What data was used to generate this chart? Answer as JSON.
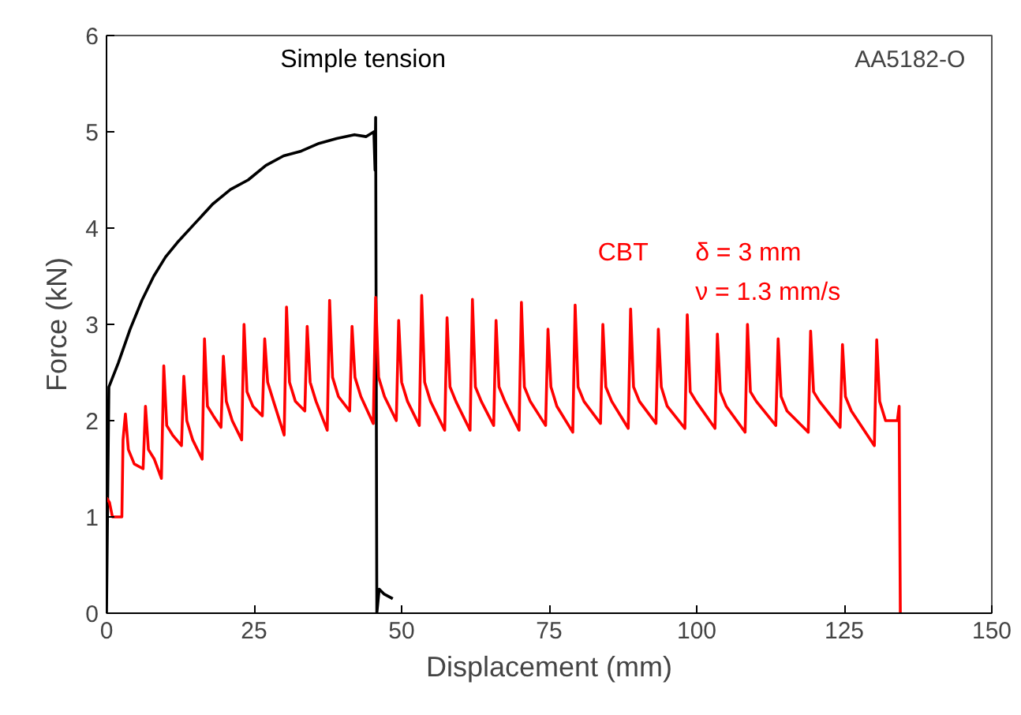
{
  "chart_data": {
    "type": "line",
    "title": "AA5182-O",
    "xlabel": "Displacement (mm)",
    "ylabel": "Force (kN)",
    "xlim": [
      0,
      150
    ],
    "ylim": [
      0,
      6
    ],
    "xticks": [
      0,
      25,
      50,
      75,
      100,
      125,
      150
    ],
    "yticks": [
      0,
      1,
      2,
      3,
      4,
      5,
      6
    ],
    "grid": false,
    "marker": "none",
    "line_style": "solid",
    "annotations": [
      "δ = 3 mm",
      "ν = 1.3 mm/s"
    ],
    "series": [
      {
        "name": "Simple tension",
        "color": "#000000",
        "x": [
          0,
          0.2,
          0.4,
          2,
          4,
          6,
          8,
          10,
          12,
          15,
          18,
          21,
          24,
          27,
          30,
          33,
          36,
          39,
          42,
          44,
          45.3,
          45.5,
          45.6,
          45.8,
          46.2,
          47,
          48.5
        ],
        "values": [
          0,
          1.2,
          2.35,
          2.6,
          2.95,
          3.25,
          3.5,
          3.7,
          3.85,
          4.05,
          4.25,
          4.4,
          4.5,
          4.65,
          4.75,
          4.8,
          4.88,
          4.93,
          4.97,
          4.95,
          5.0,
          4.6,
          5.15,
          0.0,
          0.25,
          0.2,
          0.15
        ]
      },
      {
        "name": "CBT",
        "color": "#ff0000",
        "x": [
          0,
          0.5,
          1.0,
          2.6,
          2.8,
          3.2,
          3.7,
          4.7,
          6.2,
          6.6,
          7.1,
          8.1,
          9.3,
          9.7,
          10.2,
          11.2,
          12.7,
          13.1,
          13.6,
          14.6,
          16.2,
          16.6,
          17.1,
          18.1,
          19.4,
          19.8,
          20.3,
          21.3,
          22.9,
          23.3,
          23.8,
          24.8,
          26.4,
          26.8,
          27.3,
          28.3,
          30.1,
          30.5,
          31.0,
          32.0,
          33.6,
          34.0,
          34.5,
          35.5,
          37.4,
          37.8,
          38.3,
          39.3,
          41.2,
          41.6,
          42.1,
          43.1,
          45.2,
          45.6,
          46.1,
          47.1,
          49.1,
          49.5,
          50.0,
          51.0,
          53.0,
          53.4,
          53.9,
          54.9,
          57.3,
          57.7,
          58.2,
          59.2,
          61.6,
          62.0,
          62.5,
          63.5,
          65.6,
          66.0,
          66.5,
          67.5,
          69.9,
          70.3,
          70.8,
          71.8,
          74.4,
          74.8,
          75.3,
          76.3,
          79.0,
          79.4,
          79.9,
          80.9,
          83.7,
          84.1,
          84.6,
          85.6,
          88.4,
          88.8,
          89.3,
          90.3,
          93.1,
          93.5,
          94.0,
          95.0,
          98.0,
          98.4,
          98.9,
          99.9,
          103.1,
          103.5,
          104.0,
          105.0,
          108.2,
          108.6,
          109.1,
          110.1,
          113.4,
          113.8,
          114.3,
          115.3,
          118.9,
          119.3,
          119.8,
          120.8,
          124.3,
          124.7,
          125.2,
          126.2,
          130.1,
          130.5,
          131.0,
          132.0,
          134.0,
          134.3,
          134.5
        ],
        "values": [
          1.2,
          1.15,
          1.0,
          1.0,
          1.8,
          2.07,
          1.7,
          1.55,
          1.5,
          2.15,
          1.7,
          1.6,
          1.4,
          2.57,
          1.95,
          1.85,
          1.74,
          2.46,
          2.0,
          1.8,
          1.6,
          2.85,
          2.15,
          2.05,
          1.93,
          2.67,
          2.2,
          2.0,
          1.8,
          3.0,
          2.3,
          2.15,
          2.05,
          2.85,
          2.4,
          2.2,
          1.85,
          3.18,
          2.4,
          2.2,
          2.1,
          2.98,
          2.4,
          2.2,
          1.9,
          3.25,
          2.45,
          2.25,
          2.1,
          2.98,
          2.45,
          2.25,
          1.97,
          3.28,
          2.45,
          2.25,
          2.0,
          3.04,
          2.4,
          2.2,
          1.95,
          3.3,
          2.4,
          2.2,
          1.9,
          3.07,
          2.35,
          2.2,
          1.9,
          3.26,
          2.35,
          2.2,
          1.95,
          3.04,
          2.35,
          2.2,
          1.9,
          3.23,
          2.35,
          2.2,
          1.95,
          2.95,
          2.35,
          2.15,
          1.88,
          3.2,
          2.35,
          2.2,
          1.97,
          3.0,
          2.35,
          2.2,
          1.92,
          3.16,
          2.35,
          2.2,
          1.97,
          2.95,
          2.35,
          2.15,
          1.92,
          3.1,
          2.3,
          2.2,
          1.92,
          2.9,
          2.3,
          2.15,
          1.88,
          3.0,
          2.3,
          2.2,
          1.95,
          2.85,
          2.25,
          2.1,
          1.88,
          2.93,
          2.3,
          2.2,
          1.93,
          2.79,
          2.25,
          2.1,
          1.74,
          2.84,
          2.2,
          2.0,
          2.0,
          2.15,
          0.0
        ]
      }
    ]
  }
}
